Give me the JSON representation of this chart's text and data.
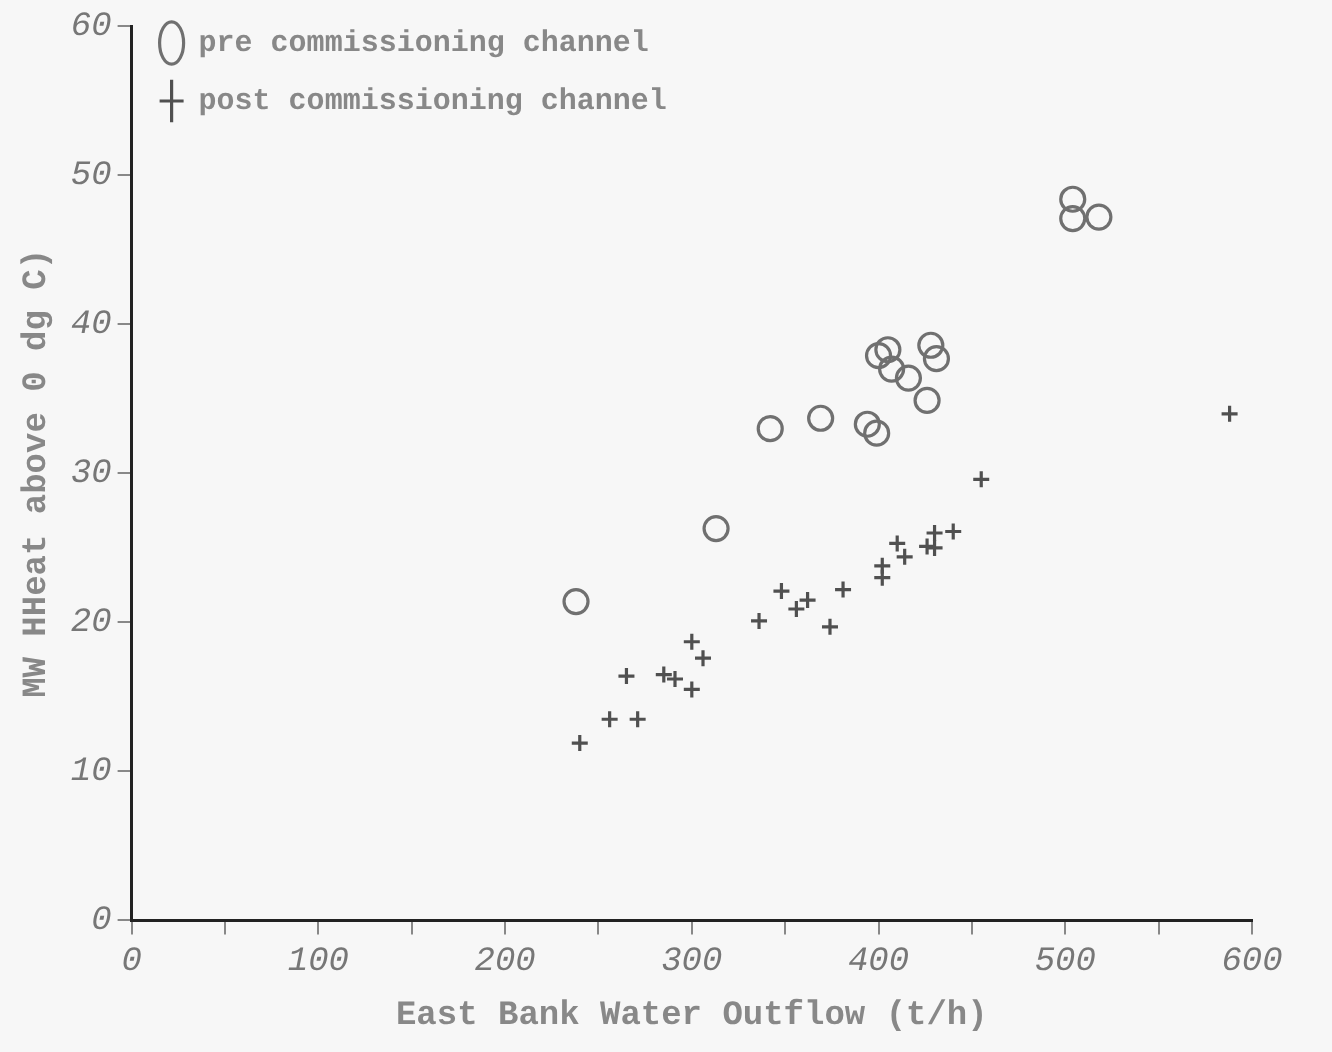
{
  "chart_data": {
    "type": "scatter",
    "xlabel": "East Bank Water Outflow (t/h)",
    "ylabel": "MW HHeat above 0 dg C)",
    "xlim": [
      0,
      600
    ],
    "ylim": [
      0,
      60
    ],
    "xticks": [
      0,
      {
        "value": 50,
        "label": null
      },
      100,
      {
        "value": 150,
        "label": null
      },
      200,
      {
        "value": 250,
        "label": null
      },
      300,
      {
        "value": 350,
        "label": null
      },
      400,
      {
        "value": 450,
        "label": null
      },
      500,
      {
        "value": 550,
        "label": null
      },
      600
    ],
    "yticks": [
      0,
      10,
      20,
      30,
      40,
      50,
      60
    ],
    "grid": false,
    "legend": "top left",
    "series": [
      {
        "name": "pre commissioning channel",
        "color": "#707070",
        "marker": "circle",
        "x": [
          342,
          369,
          394,
          399,
          400,
          405,
          407,
          416,
          426,
          428,
          431,
          313,
          238,
          504,
          504,
          518
        ],
        "values": [
          33.0,
          33.7,
          33.3,
          32.7,
          37.9,
          38.3,
          37.0,
          36.4,
          34.9,
          38.6,
          37.7,
          26.3,
          21.4,
          48.4,
          47.1,
          47.2
        ]
      },
      {
        "name": "post commissioning channel",
        "color": "#505050",
        "marker": "cross",
        "x": [
          240,
          256,
          271,
          265,
          285,
          291,
          300,
          300,
          306,
          336,
          348,
          356,
          362,
          374,
          381,
          402,
          402,
          410,
          414,
          426,
          430,
          430,
          440,
          455,
          588
        ],
        "values": [
          11.9,
          13.5,
          13.5,
          16.4,
          16.5,
          16.2,
          15.5,
          18.7,
          17.6,
          20.1,
          22.1,
          20.9,
          21.5,
          19.7,
          22.2,
          23.0,
          23.8,
          25.3,
          24.4,
          25.1,
          25.0,
          26.0,
          26.1,
          29.6,
          34.0
        ]
      }
    ]
  }
}
